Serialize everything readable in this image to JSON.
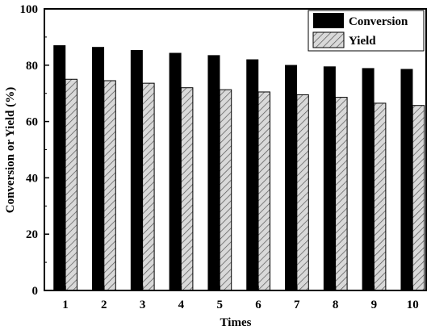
{
  "chart_data": {
    "type": "bar",
    "xlabel": "Times",
    "ylabel": "Conversion or Yield (%)",
    "categories": [
      "1",
      "2",
      "3",
      "4",
      "5",
      "6",
      "7",
      "8",
      "9",
      "10"
    ],
    "ylim": [
      0,
      100
    ],
    "yticks": [
      "0",
      "20",
      "40",
      "60",
      "80",
      "100"
    ],
    "legend_position": "top-right",
    "grid": false,
    "series": [
      {
        "name": "Conversion",
        "values": [
          87,
          86.4,
          85.3,
          84.3,
          83.5,
          82,
          80,
          79.5,
          78.9,
          78.6
        ],
        "color": "#000000",
        "pattern": "solid"
      },
      {
        "name": "Yield",
        "values": [
          75,
          74.5,
          73.6,
          72,
          71.3,
          70.5,
          69.5,
          68.6,
          66.5,
          65.7
        ],
        "color": "#cfcfcf",
        "pattern": "hatched"
      }
    ]
  }
}
